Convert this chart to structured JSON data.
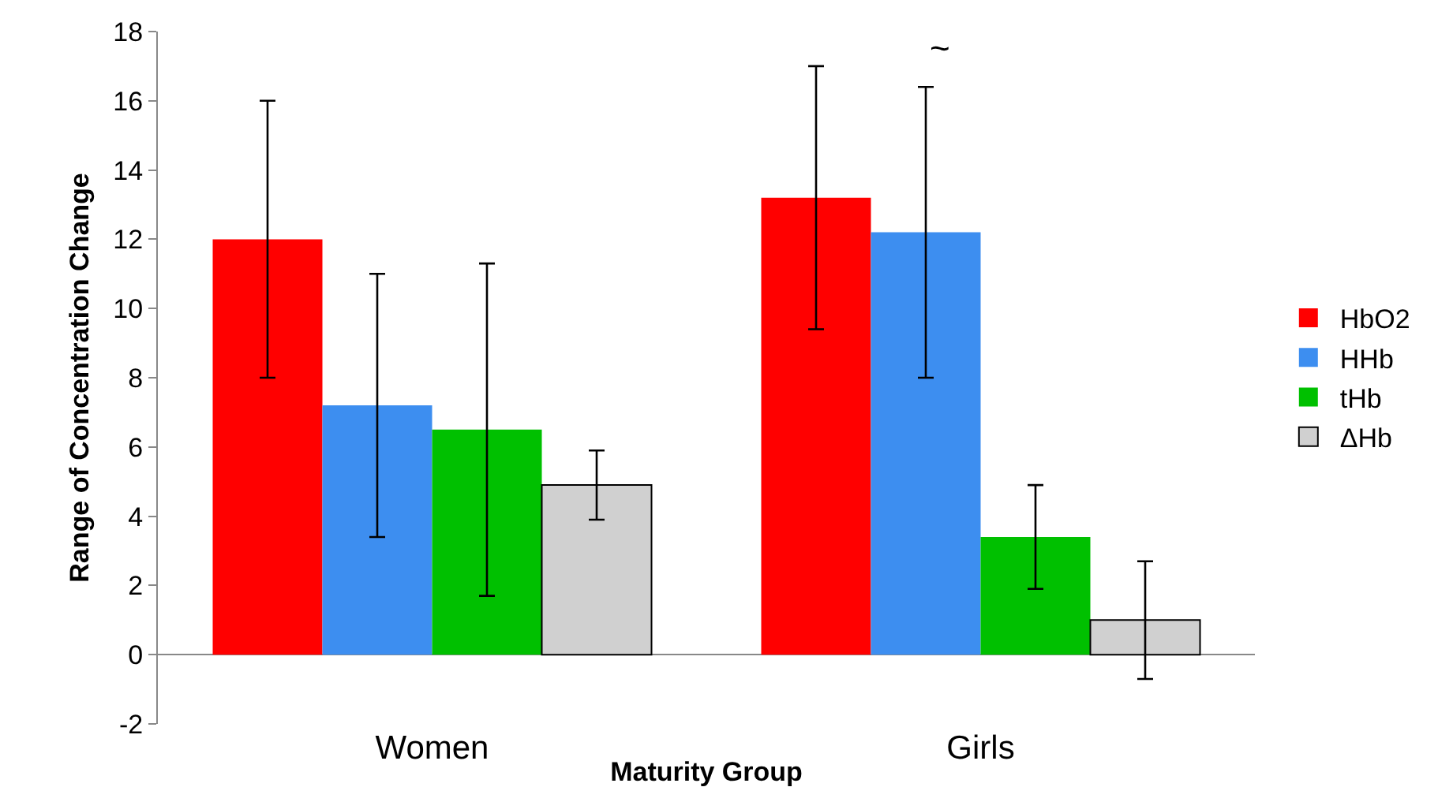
{
  "chart_data": {
    "type": "bar",
    "xlabel": "Maturity Group",
    "ylabel": "Range of Concentration Change",
    "categories": [
      "Women",
      "Girls"
    ],
    "series": [
      {
        "name": "HbO2",
        "color": "#ff0000",
        "values": [
          12.0,
          13.2
        ],
        "errors": [
          4.0,
          3.8
        ]
      },
      {
        "name": "HHb",
        "color": "#3d8ef0",
        "values": [
          7.2,
          12.2
        ],
        "errors": [
          3.8,
          4.2
        ]
      },
      {
        "name": "tHb",
        "color": "#00c000",
        "values": [
          6.5,
          3.4
        ],
        "errors": [
          4.8,
          1.5
        ]
      },
      {
        "name": "ΔHb",
        "color": "#d0d0d0",
        "values": [
          4.9,
          1.0
        ],
        "errors": [
          1.0,
          1.7
        ]
      }
    ],
    "ylim": [
      -2,
      18
    ],
    "yticks": [
      -2,
      0,
      2,
      4,
      6,
      8,
      10,
      12,
      14,
      16,
      18
    ],
    "grid": false,
    "legend": "right",
    "annotations": [
      "~"
    ]
  }
}
